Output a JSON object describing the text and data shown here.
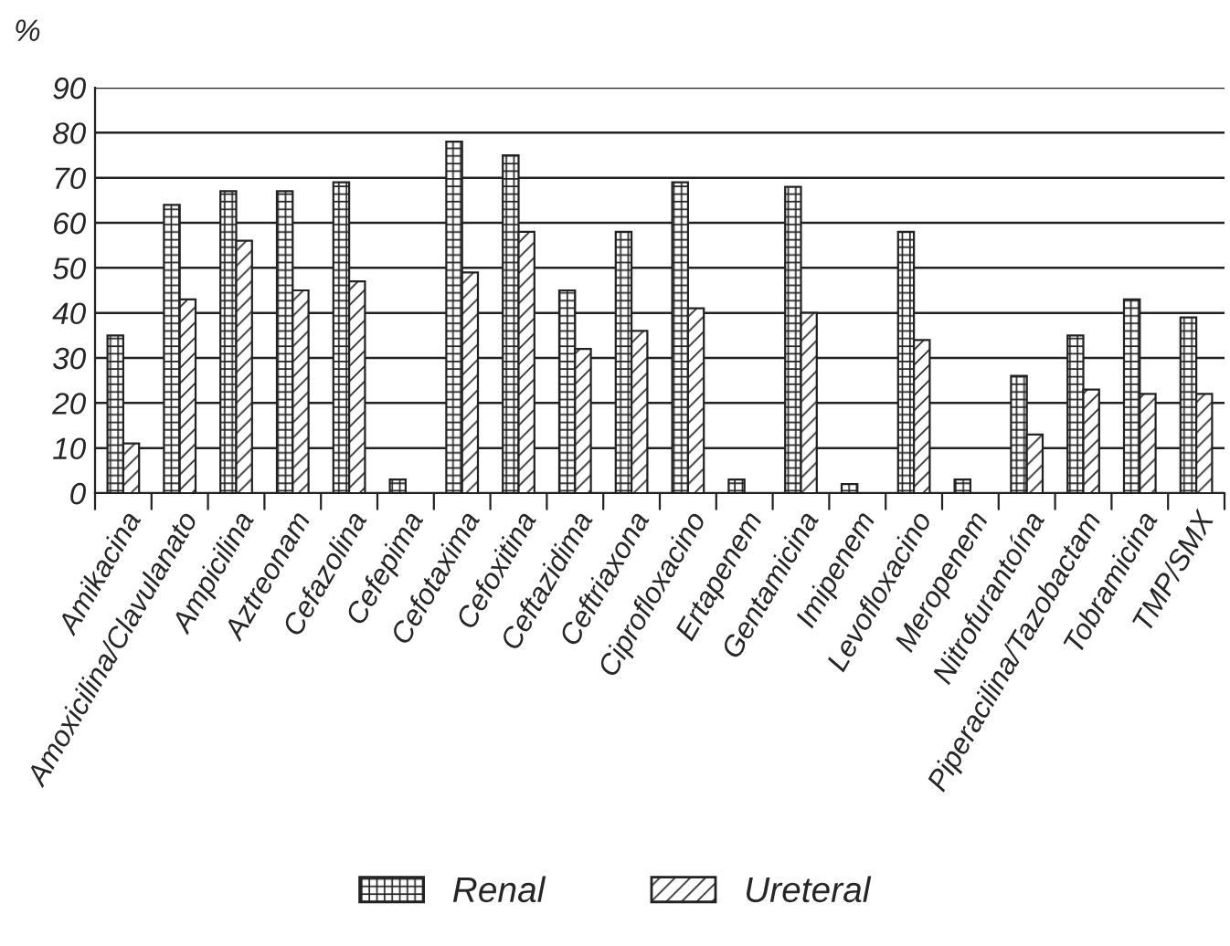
{
  "chart_data": {
    "type": "bar",
    "ylabel": "%",
    "categories": [
      "Amikacina",
      "Amoxicilina/Clavulanato",
      "Ampicilina",
      "Aztreonam",
      "Cefazolina",
      "Cefepima",
      "Cefotaxima",
      "Cefoxitina",
      "Ceftazidima",
      "Ceftriaxona",
      "Ciprofloxacino",
      "Ertapenem",
      "Gentamicina",
      "Imipenem",
      "Levofloxacino",
      "Meropenem",
      "Nitrofurantoína",
      "Piperacilina/Tazobactam",
      "Tobramicina",
      "TMP/SMX"
    ],
    "series": [
      {
        "name": "Renal",
        "color": "#222222",
        "values": [
          35,
          64,
          67,
          67,
          69,
          3,
          78,
          75,
          45,
          58,
          69,
          3,
          68,
          2,
          58,
          3,
          26,
          35,
          43,
          39
        ]
      },
      {
        "name": "Ureteral",
        "color": "#222222",
        "values": [
          11,
          43,
          56,
          45,
          47,
          null,
          49,
          58,
          32,
          36,
          41,
          null,
          40,
          null,
          34,
          null,
          13,
          23,
          22,
          22
        ]
      }
    ],
    "ylim": [
      0,
      90
    ],
    "yticks": [
      0,
      10,
      20,
      30,
      40,
      50,
      60,
      70,
      80,
      90
    ],
    "grid": "y",
    "legend": "bottom"
  }
}
